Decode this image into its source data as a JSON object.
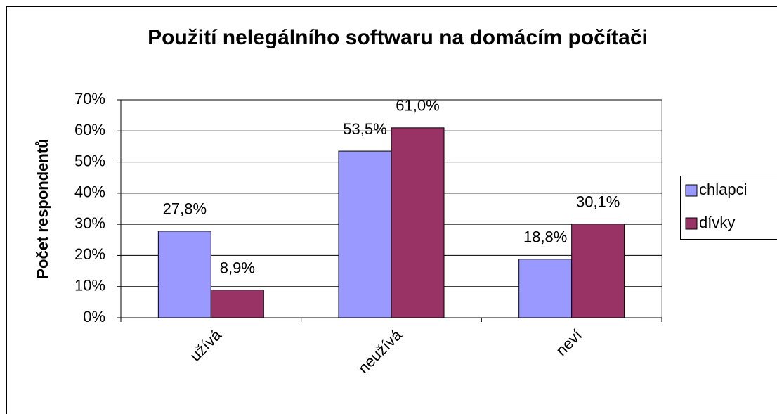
{
  "chart_data": {
    "type": "bar",
    "title": "Použití nelegálního softwaru na domácím počítači",
    "y_label": "Počet respondentů",
    "categories": [
      "užívá",
      "neužívá",
      "neví"
    ],
    "series": [
      {
        "name": "chlapci",
        "color": "#9999ff",
        "values": [
          27.8,
          53.5,
          18.8
        ],
        "value_labels": [
          "27,8%",
          "53,5%",
          "18,8%"
        ]
      },
      {
        "name": "dívky",
        "color": "#993366",
        "values": [
          8.9,
          61.0,
          30.1
        ],
        "value_labels": [
          "8,9%",
          "61,0%",
          "30,1%"
        ]
      }
    ],
    "ylim": [
      0,
      70
    ],
    "yticks": [
      {
        "value": 0,
        "label": "0%"
      },
      {
        "value": 10,
        "label": "10%"
      },
      {
        "value": 20,
        "label": "20%"
      },
      {
        "value": 30,
        "label": "30%"
      },
      {
        "value": 40,
        "label": "40%"
      },
      {
        "value": 50,
        "label": "50%"
      },
      {
        "value": 60,
        "label": "60%"
      },
      {
        "value": 70,
        "label": "70%"
      }
    ],
    "grid": true,
    "legend": "right"
  }
}
